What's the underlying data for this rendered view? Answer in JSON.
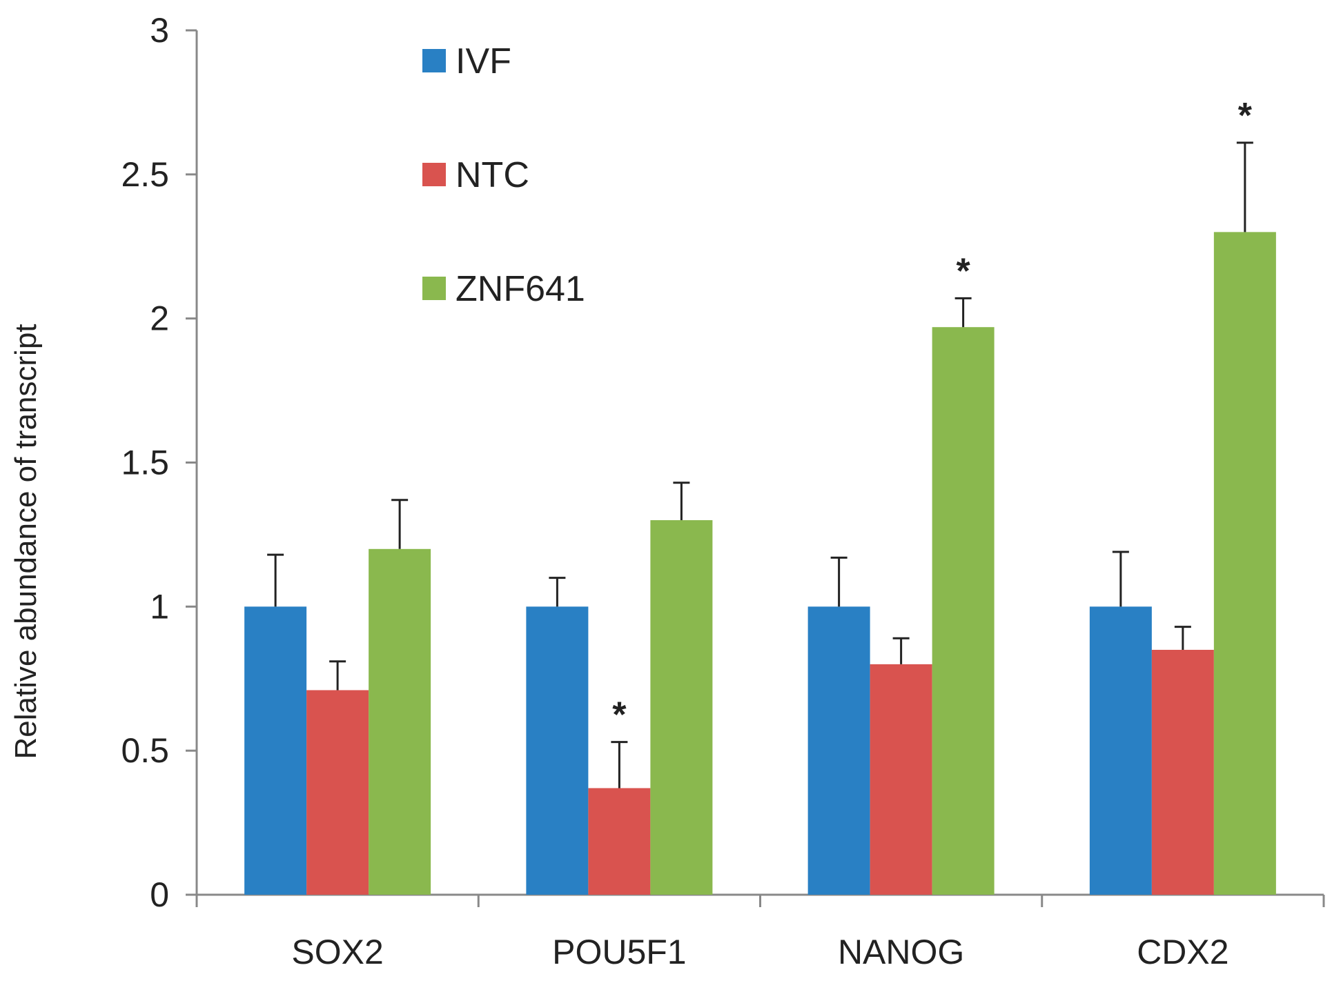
{
  "chart_data": {
    "type": "bar",
    "title": "",
    "xlabel": "",
    "ylabel": "Relative abundance of transcript",
    "ylim": [
      0,
      3
    ],
    "yticks": [
      0,
      0.5,
      1,
      1.5,
      2,
      2.5,
      3
    ],
    "ytick_labels": [
      "0",
      "0.5",
      "1",
      "1.5",
      "2",
      "2.5",
      "3"
    ],
    "grid": false,
    "legend_position": "top-left",
    "categories": [
      "SOX2",
      "POU5F1",
      "NANOG",
      "CDX2"
    ],
    "series": [
      {
        "name": "IVF",
        "color": "#2980c4",
        "values": [
          1.0,
          1.0,
          1.0,
          1.0
        ],
        "errors": [
          0.18,
          0.1,
          0.17,
          0.19
        ],
        "significant": [
          false,
          false,
          false,
          false
        ]
      },
      {
        "name": "NTC",
        "color": "#d9534f",
        "values": [
          0.71,
          0.37,
          0.8,
          0.85
        ],
        "errors": [
          0.1,
          0.16,
          0.09,
          0.08
        ],
        "significant": [
          false,
          true,
          false,
          false
        ]
      },
      {
        "name": "ZNF641",
        "color": "#8ab84e",
        "values": [
          1.2,
          1.3,
          1.97,
          2.3
        ],
        "errors": [
          0.17,
          0.13,
          0.1,
          0.31
        ],
        "significant": [
          false,
          false,
          true,
          true
        ]
      }
    ],
    "significance_marker": "*"
  }
}
